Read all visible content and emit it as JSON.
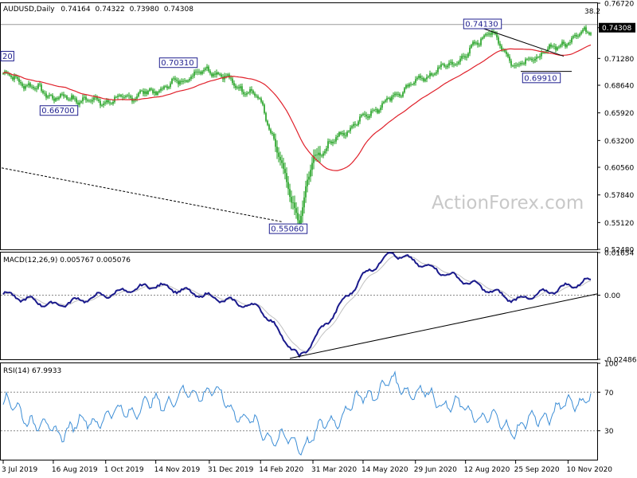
{
  "chart_data": [
    {
      "type": "candlestick",
      "title": "AUDUSD,Daily",
      "ohlc": {
        "open": "0.74164",
        "high": "0.74322",
        "low": "0.73980",
        "close": "0.74308"
      },
      "price_tag": "0.74308",
      "ylim": [
        0.5248,
        0.7672
      ],
      "y_ticks": [
        "0.76720",
        "0.74308",
        "0.71280",
        "0.68640",
        "0.65920",
        "0.63200",
        "0.60560",
        "0.57840",
        "0.55120",
        "0.52480"
      ],
      "fib_label": "38.2",
      "fib_level": 0.7462,
      "annotations": [
        {
          "text": "20",
          "price": 0.7096,
          "date_index": 0
        },
        {
          "text": "0.66700",
          "price": 0.667,
          "date_index": 35
        },
        {
          "text": "0.70310",
          "price": 0.7031,
          "date_index": 110
        },
        {
          "text": "0.55060",
          "price": 0.5506,
          "date_index": 179
        },
        {
          "text": "0.74130",
          "price": 0.7413,
          "date_index": 301
        },
        {
          "text": "0.69910",
          "price": 0.6991,
          "date_index": 338
        }
      ],
      "key_points": [
        {
          "date": "3 Jul 2019",
          "price": 0.698
        },
        {
          "date": "16 Aug 2019",
          "price": 0.675
        },
        {
          "date": "1 Oct 2019",
          "price": 0.67
        },
        {
          "date": "14 Nov 2019",
          "price": 0.681
        },
        {
          "date": "31 Dec 2019",
          "price": 0.7031
        },
        {
          "date": "14 Feb 2020",
          "price": 0.672
        },
        {
          "date": "19 Mar 2020",
          "price": 0.5506
        },
        {
          "date": "31 Mar 2020",
          "price": 0.615
        },
        {
          "date": "14 May 2020",
          "price": 0.655
        },
        {
          "date": "29 Jun 2020",
          "price": 0.69
        },
        {
          "date": "12 Aug 2020",
          "price": 0.715
        },
        {
          "date": "1 Sep 2020",
          "price": 0.7413
        },
        {
          "date": "25 Sep 2020",
          "price": 0.705
        },
        {
          "date": "10 Nov 2020",
          "price": 0.73
        },
        {
          "date": "30 Nov 2020",
          "price": 0.743
        }
      ]
    },
    {
      "type": "line",
      "title": "MACD(12,26,9) 0.005767 0.005076",
      "ylim": [
        -0.02486,
        0.01654
      ],
      "y_ticks": [
        "0.01654",
        "0.00",
        "-0.02486"
      ],
      "macd_key_points": [
        {
          "date": "3 Jul 2019",
          "value": 0.0005
        },
        {
          "date": "16 Aug 2019",
          "value": -0.004
        },
        {
          "date": "14 Nov 2019",
          "value": 0.004
        },
        {
          "date": "14 Feb 2020",
          "value": -0.005
        },
        {
          "date": "19 Mar 2020",
          "value": -0.0245
        },
        {
          "date": "14 May 2020",
          "value": 0.0075
        },
        {
          "date": "8 Jun 2020",
          "value": 0.0165
        },
        {
          "date": "25 Sep 2020",
          "value": -0.002
        },
        {
          "date": "30 Nov 2020",
          "value": 0.0058
        }
      ]
    },
    {
      "type": "line",
      "title": "RSI(14) 67.9933",
      "ylim": [
        0,
        100
      ],
      "y_ticks": [
        "100",
        "70",
        "30",
        "0"
      ],
      "rsi_key_points": [
        {
          "date": "3 Jul 2019",
          "value": 60
        },
        {
          "date": "16 Aug 2019",
          "value": 28
        },
        {
          "date": "1 Oct 2019",
          "value": 45
        },
        {
          "date": "31 Dec 2019",
          "value": 73
        },
        {
          "date": "14 Feb 2020",
          "value": 30
        },
        {
          "date": "19 Mar 2020",
          "value": 14
        },
        {
          "date": "14 May 2020",
          "value": 65
        },
        {
          "date": "8 Jun 2020",
          "value": 80
        },
        {
          "date": "25 Sep 2020",
          "value": 32
        },
        {
          "date": "30 Nov 2020",
          "value": 68
        }
      ]
    }
  ],
  "x_ticks": [
    "3 Jul 2019",
    "16 Aug 2019",
    "1 Oct 2019",
    "14 Nov 2019",
    "31 Dec 2019",
    "14 Feb 2020",
    "31 Mar 2020",
    "14 May 2020",
    "29 Jun 2020",
    "12 Aug 2020",
    "25 Sep 2020",
    "10 Nov 2020"
  ],
  "watermark": "ActionForex.com",
  "colors": {
    "moving_average": "#e0202a",
    "macd": "#1a1a8c",
    "signal": "#c0c0c0",
    "rsi": "#3d8ed6",
    "candle": "#1a9e1a"
  }
}
